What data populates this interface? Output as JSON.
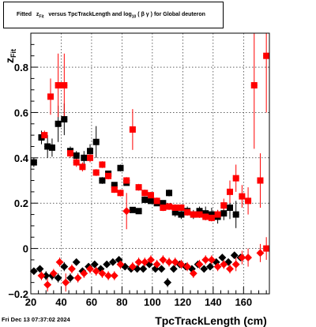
{
  "title": {
    "prefix": "Fitted",
    "z": "z",
    "z_sub": "Fit",
    "middle": "versus TpcTrackLength and log",
    "log_sub": "10",
    "paren_open": "(",
    "beta_gamma": "β γ",
    "paren_close": ")",
    "suffix": "for Global deuteron"
  },
  "footer": {
    "date": "Fri Dec 13 07:37:02 2024"
  },
  "chart_data": {
    "type": "scatter",
    "xlabel": "TpcTrackLength (cm)",
    "ylabel": "z",
    "ylabel_sub": "Fit",
    "xlim": [
      20,
      177
    ],
    "ylim": [
      -0.2,
      0.95
    ],
    "xticks": [
      20,
      40,
      60,
      80,
      100,
      120,
      140,
      160
    ],
    "yticks": [
      -0.2,
      0,
      0.2,
      0.4,
      0.6,
      0.8
    ],
    "ytick_labels": [
      "−0.2",
      "0",
      "0.2",
      "0.4",
      "0.6",
      "0.8"
    ],
    "grid": true,
    "series": [
      {
        "color": "#000000",
        "marker": "square",
        "points": [
          {
            "x": 22,
            "y": 0.38,
            "err": 0.02
          },
          {
            "x": 27,
            "y": 0.49,
            "err": 0.03
          },
          {
            "x": 31,
            "y": 0.45,
            "err": 0.05
          },
          {
            "x": 34,
            "y": 0.445,
            "err": 0.04
          },
          {
            "x": 38,
            "y": 0.55,
            "err": 0.08
          },
          {
            "x": 42,
            "y": 0.57,
            "err": 0.07
          },
          {
            "x": 46,
            "y": 0.43,
            "err": 0.02
          },
          {
            "x": 50,
            "y": 0.41,
            "err": 0.02
          },
          {
            "x": 55,
            "y": 0.4,
            "err": 0.03
          },
          {
            "x": 59,
            "y": 0.43,
            "err": 0.03
          },
          {
            "x": 63,
            "y": 0.47,
            "err": 0.07
          },
          {
            "x": 67,
            "y": 0.3,
            "err": 0.015
          },
          {
            "x": 71,
            "y": 0.33,
            "err": 0.01
          },
          {
            "x": 75,
            "y": 0.28,
            "err": 0.01
          },
          {
            "x": 79,
            "y": 0.355,
            "err": 0.015
          },
          {
            "x": 83,
            "y": 0.29,
            "err": 0.01
          },
          {
            "x": 87,
            "y": 0.17,
            "err": 0.01
          },
          {
            "x": 91,
            "y": 0.165,
            "err": 0.01
          },
          {
            "x": 95,
            "y": 0.215,
            "err": 0.01
          },
          {
            "x": 99,
            "y": 0.21,
            "err": 0.01
          },
          {
            "x": 103,
            "y": 0.2,
            "err": 0.01
          },
          {
            "x": 107,
            "y": 0.2,
            "err": 0.01
          },
          {
            "x": 111,
            "y": 0.245,
            "err": 0.015
          },
          {
            "x": 115,
            "y": 0.16,
            "err": 0.02
          },
          {
            "x": 119,
            "y": 0.15,
            "err": 0.02
          },
          {
            "x": 123,
            "y": 0.165,
            "err": 0.02
          },
          {
            "x": 127,
            "y": 0.15,
            "err": 0.02
          },
          {
            "x": 131,
            "y": 0.165,
            "err": 0.02
          },
          {
            "x": 135,
            "y": 0.155,
            "err": 0.03
          },
          {
            "x": 139,
            "y": 0.15,
            "err": 0.03
          },
          {
            "x": 143,
            "y": 0.14,
            "err": 0.03
          },
          {
            "x": 147,
            "y": 0.155,
            "err": 0.03
          },
          {
            "x": 151,
            "y": 0.18,
            "err": 0.05
          },
          {
            "x": 155,
            "y": 0.15,
            "err": 0.06
          },
          {
            "x": 22,
            "y": -0.1,
            "err": 0.015
          },
          {
            "x": 26,
            "y": -0.09,
            "err": 0.015
          },
          {
            "x": 30,
            "y": -0.12,
            "err": 0.02
          },
          {
            "x": 34,
            "y": -0.12,
            "err": 0.02
          },
          {
            "x": 38,
            "y": -0.13,
            "err": 0.02
          },
          {
            "x": 42,
            "y": -0.08,
            "err": 0.02
          },
          {
            "x": 46,
            "y": -0.13,
            "err": 0.02
          },
          {
            "x": 50,
            "y": -0.06,
            "err": 0.015
          },
          {
            "x": 54,
            "y": -0.1,
            "err": 0.015
          },
          {
            "x": 58,
            "y": -0.08,
            "err": 0.015
          },
          {
            "x": 62,
            "y": -0.07,
            "err": 0.015
          },
          {
            "x": 66,
            "y": -0.09,
            "err": 0.015
          },
          {
            "x": 70,
            "y": -0.07,
            "err": 0.015
          },
          {
            "x": 74,
            "y": -0.06,
            "err": 0.015
          },
          {
            "x": 78,
            "y": -0.05,
            "err": 0.015
          },
          {
            "x": 82,
            "y": -0.08,
            "err": 0.015
          },
          {
            "x": 86,
            "y": -0.09,
            "err": 0.015
          },
          {
            "x": 90,
            "y": -0.09,
            "err": 0.015
          },
          {
            "x": 94,
            "y": -0.09,
            "err": 0.015
          },
          {
            "x": 98,
            "y": -0.07,
            "err": 0.015
          },
          {
            "x": 102,
            "y": -0.09,
            "err": 0.015
          },
          {
            "x": 106,
            "y": -0.09,
            "err": 0.015
          },
          {
            "x": 110,
            "y": -0.15,
            "err": 0.02
          },
          {
            "x": 114,
            "y": -0.09,
            "err": 0.015
          },
          {
            "x": 118,
            "y": -0.07,
            "err": 0.015
          },
          {
            "x": 122,
            "y": -0.08,
            "err": 0.015
          },
          {
            "x": 126,
            "y": -0.09,
            "err": 0.015
          },
          {
            "x": 130,
            "y": -0.07,
            "err": 0.015
          },
          {
            "x": 134,
            "y": -0.09,
            "err": 0.015
          },
          {
            "x": 138,
            "y": -0.08,
            "err": 0.015
          },
          {
            "x": 142,
            "y": -0.06,
            "err": 0.015
          },
          {
            "x": 146,
            "y": -0.04,
            "err": 0.015
          },
          {
            "x": 150,
            "y": -0.06,
            "err": 0.015
          },
          {
            "x": 154,
            "y": -0.03,
            "err": 0.015
          },
          {
            "x": 158,
            "y": -0.04,
            "err": 0.015
          }
        ]
      },
      {
        "color": "#ff0000",
        "marker": "square",
        "points": [
          {
            "x": 29,
            "y": 0.5,
            "err": 0.02
          },
          {
            "x": 33,
            "y": 0.67,
            "err": 0.08
          },
          {
            "x": 38,
            "y": 0.72,
            "err": 0.14
          },
          {
            "x": 42,
            "y": 0.72,
            "err": 0.14
          },
          {
            "x": 46,
            "y": 0.42,
            "err": 0.02
          },
          {
            "x": 50,
            "y": 0.38,
            "err": 0.02
          },
          {
            "x": 54,
            "y": 0.36,
            "err": 0.02
          },
          {
            "x": 59,
            "y": 0.4,
            "err": 0.02
          },
          {
            "x": 63,
            "y": 0.335,
            "err": 0.015
          },
          {
            "x": 67,
            "y": 0.37,
            "err": 0.015
          },
          {
            "x": 71,
            "y": 0.32,
            "err": 0.015
          },
          {
            "x": 75,
            "y": 0.26,
            "err": 0.015
          },
          {
            "x": 79,
            "y": 0.245,
            "err": 0.015
          },
          {
            "x": 83,
            "y": 0.3,
            "err": 0.015
          },
          {
            "x": 87,
            "y": 0.525,
            "err": 0.09
          },
          {
            "x": 91,
            "y": 0.27,
            "err": 0.015
          },
          {
            "x": 95,
            "y": 0.245,
            "err": 0.015
          },
          {
            "x": 99,
            "y": 0.235,
            "err": 0.015
          },
          {
            "x": 103,
            "y": 0.21,
            "err": 0.015
          },
          {
            "x": 107,
            "y": 0.18,
            "err": 0.015
          },
          {
            "x": 111,
            "y": 0.185,
            "err": 0.015
          },
          {
            "x": 115,
            "y": 0.18,
            "err": 0.015
          },
          {
            "x": 119,
            "y": 0.18,
            "err": 0.015
          },
          {
            "x": 123,
            "y": 0.16,
            "err": 0.015
          },
          {
            "x": 127,
            "y": 0.15,
            "err": 0.015
          },
          {
            "x": 131,
            "y": 0.15,
            "err": 0.015
          },
          {
            "x": 135,
            "y": 0.14,
            "err": 0.015
          },
          {
            "x": 139,
            "y": 0.135,
            "err": 0.015
          },
          {
            "x": 143,
            "y": 0.15,
            "err": 0.02
          },
          {
            "x": 147,
            "y": 0.19,
            "err": 0.03
          },
          {
            "x": 151,
            "y": 0.25,
            "err": 0.05
          },
          {
            "x": 155,
            "y": 0.31,
            "err": 0.06
          },
          {
            "x": 159,
            "y": 0.23,
            "err": 0.05
          },
          {
            "x": 163,
            "y": 0.21,
            "err": 0.06
          },
          {
            "x": 167,
            "y": 0.72,
            "err": 0.28
          },
          {
            "x": 171,
            "y": 0.3,
            "err": 0.12
          },
          {
            "x": 175,
            "y": 0.85,
            "err": 0.25
          },
          {
            "x": 27,
            "y": -0.12,
            "err": 0.02
          },
          {
            "x": 31,
            "y": -0.16,
            "err": 0.03
          },
          {
            "x": 35,
            "y": -0.11,
            "err": 0.02
          },
          {
            "x": 39,
            "y": -0.06,
            "err": 0.02
          },
          {
            "x": 43,
            "y": -0.15,
            "err": 0.04
          },
          {
            "x": 47,
            "y": -0.09,
            "err": 0.02
          },
          {
            "x": 51,
            "y": -0.13,
            "err": 0.02
          },
          {
            "x": 55,
            "y": -0.11,
            "err": 0.02
          },
          {
            "x": 59,
            "y": -0.09,
            "err": 0.02
          },
          {
            "x": 63,
            "y": -0.1,
            "err": 0.02
          },
          {
            "x": 67,
            "y": -0.11,
            "err": 0.02
          },
          {
            "x": 71,
            "y": -0.12,
            "err": 0.02
          },
          {
            "x": 75,
            "y": -0.12,
            "err": 0.02
          },
          {
            "x": 79,
            "y": -0.07,
            "err": 0.02
          },
          {
            "x": 83,
            "y": 0.165,
            "err": 0.08
          },
          {
            "x": 87,
            "y": -0.08,
            "err": 0.02
          },
          {
            "x": 91,
            "y": -0.06,
            "err": 0.02
          },
          {
            "x": 95,
            "y": -0.06,
            "err": 0.02
          },
          {
            "x": 99,
            "y": -0.05,
            "err": 0.02
          },
          {
            "x": 103,
            "y": -0.07,
            "err": 0.02
          },
          {
            "x": 107,
            "y": -0.05,
            "err": 0.02
          },
          {
            "x": 111,
            "y": -0.06,
            "err": 0.02
          },
          {
            "x": 115,
            "y": -0.06,
            "err": 0.02
          },
          {
            "x": 119,
            "y": -0.07,
            "err": 0.02
          },
          {
            "x": 123,
            "y": -0.08,
            "err": 0.02
          },
          {
            "x": 127,
            "y": -0.11,
            "err": 0.02
          },
          {
            "x": 131,
            "y": -0.07,
            "err": 0.02
          },
          {
            "x": 135,
            "y": -0.05,
            "err": 0.02
          },
          {
            "x": 139,
            "y": -0.05,
            "err": 0.02
          },
          {
            "x": 143,
            "y": -0.08,
            "err": 0.02
          },
          {
            "x": 147,
            "y": -0.07,
            "err": 0.02
          },
          {
            "x": 151,
            "y": -0.09,
            "err": 0.02
          },
          {
            "x": 155,
            "y": -0.07,
            "err": 0.03
          },
          {
            "x": 159,
            "y": -0.04,
            "err": 0.03
          },
          {
            "x": 163,
            "y": -0.04,
            "err": 0.04
          },
          {
            "x": 171,
            "y": -0.02,
            "err": 0.04
          },
          {
            "x": 175,
            "y": 0.0,
            "err": 0.05
          }
        ]
      }
    ]
  }
}
